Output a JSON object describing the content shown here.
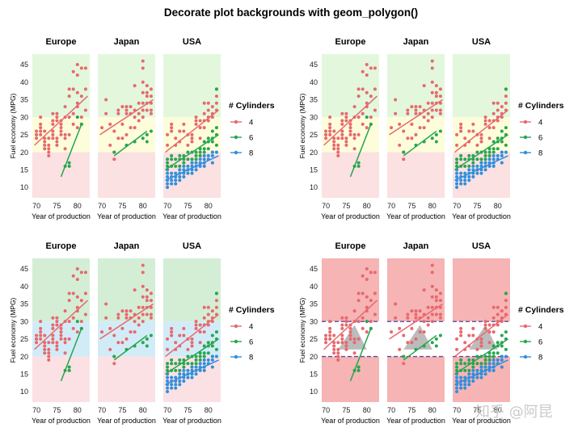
{
  "title": "Decorate plot backgrounds with geom_polygon()",
  "watermark": "知乎 @阿昆",
  "chart_data": [
    {
      "type": "scatter",
      "panel": "top-left",
      "background_style": "bands-green-yellow-pink",
      "facets": [
        "Europe",
        "Japan",
        "USA"
      ],
      "xlabel": "Year of production",
      "ylabel": "Fuel economy (MPG)",
      "xlim": [
        69,
        83
      ],
      "ylim": [
        7,
        48
      ],
      "xticks": [
        70,
        75,
        80
      ],
      "yticks": [
        10,
        15,
        20,
        25,
        30,
        35,
        40,
        45
      ],
      "legend_title": "# Cylinders",
      "legend_entries": [
        "4",
        "6",
        "8"
      ],
      "legend_position": "right",
      "bands": [
        {
          "from": 30,
          "to": 48,
          "color": "#e3f7dc"
        },
        {
          "from": 20,
          "to": 30,
          "color": "#fdfddb"
        },
        {
          "from": 7,
          "to": 20,
          "color": "#fbe1e1"
        }
      ]
    },
    {
      "type": "scatter",
      "panel": "top-right",
      "background_style": "bands-green-yellow-pink",
      "facets": [
        "Europe",
        "Japan",
        "USA"
      ],
      "xlabel": "Year of production",
      "ylabel": "Fuel economy (MPG)",
      "xlim": [
        69,
        83
      ],
      "ylim": [
        7,
        48
      ],
      "xticks": [
        70,
        75,
        80
      ],
      "yticks": [
        10,
        15,
        20,
        25,
        30,
        35,
        40,
        45
      ],
      "legend_title": "# Cylinders",
      "legend_entries": [
        "4",
        "6",
        "8"
      ],
      "legend_position": "right",
      "bands": [
        {
          "from": 30,
          "to": 48,
          "color": "#e3f7dc"
        },
        {
          "from": 20,
          "to": 30,
          "color": "#fdfddb"
        },
        {
          "from": 7,
          "to": 20,
          "color": "#fbe1e1"
        }
      ]
    },
    {
      "type": "scatter",
      "panel": "bottom-left",
      "background_style": "bands-green-blue-pink",
      "facets": [
        "Europe",
        "Japan",
        "USA"
      ],
      "xlabel": "Year of production",
      "ylabel": "Fuel economy (MPG)",
      "xlim": [
        69,
        83
      ],
      "ylim": [
        7,
        48
      ],
      "xticks": [
        70,
        75,
        80
      ],
      "yticks": [
        10,
        15,
        20,
        25,
        30,
        35,
        40,
        45
      ],
      "legend_title": "# Cylinders",
      "legend_entries": [
        "4",
        "6",
        "8"
      ],
      "legend_position": "right",
      "bands": [
        {
          "from": 30,
          "to": 48,
          "color": "#d4eed6"
        },
        {
          "from": 20,
          "to": 30,
          "color": "#d2ecf7"
        },
        {
          "from": 7,
          "to": 20,
          "color": "#fbe1e4"
        }
      ]
    },
    {
      "type": "scatter",
      "panel": "bottom-right",
      "background_style": "red-with-white-band-and-grey-triangle",
      "facets": [
        "Europe",
        "Japan",
        "USA"
      ],
      "xlabel": "Year of production",
      "ylabel": "Fuel economy (MPG)",
      "xlim": [
        69,
        83
      ],
      "ylim": [
        7,
        48
      ],
      "xticks": [
        70,
        75,
        80
      ],
      "yticks": [
        10,
        15,
        20,
        25,
        30,
        35,
        40,
        45
      ],
      "legend_title": "# Cylinders",
      "legend_entries": [
        "4",
        "6",
        "8"
      ],
      "legend_position": "right",
      "bands": [
        {
          "from": 30,
          "to": 48,
          "color": "#f6b4b4"
        },
        {
          "from": 20,
          "to": 30,
          "color": "#ffffff"
        },
        {
          "from": 7,
          "to": 20,
          "color": "#f6b4b4"
        }
      ],
      "dashed_lines": [
        20,
        30
      ],
      "triangle": {
        "x": [
          73,
          77,
          80
        ],
        "y": [
          22,
          29,
          22
        ],
        "color": "#b5b5b5"
      }
    }
  ],
  "series": [
    {
      "name": "4",
      "color": "#e8686d"
    },
    {
      "name": "6",
      "color": "#27a64f"
    },
    {
      "name": "8",
      "color": "#2e8fdd"
    }
  ],
  "points": {
    "Europe": {
      "4": [
        [
          70,
          26
        ],
        [
          70,
          25
        ],
        [
          70,
          24
        ],
        [
          70,
          25
        ],
        [
          71,
          27
        ],
        [
          71,
          28
        ],
        [
          71,
          30
        ],
        [
          71,
          25
        ],
        [
          71,
          26
        ],
        [
          72,
          22
        ],
        [
          72,
          21
        ],
        [
          72,
          23
        ],
        [
          72,
          26
        ],
        [
          72,
          24
        ],
        [
          73,
          24
        ],
        [
          73,
          20
        ],
        [
          73,
          21
        ],
        [
          73,
          19
        ],
        [
          73,
          22
        ],
        [
          74,
          25
        ],
        [
          74,
          26
        ],
        [
          74,
          24
        ],
        [
          74,
          28
        ],
        [
          74,
          29
        ],
        [
          74,
          31
        ],
        [
          75,
          29
        ],
        [
          75,
          30
        ],
        [
          75,
          24
        ],
        [
          75,
          22
        ],
        [
          75,
          23
        ],
        [
          76,
          25
        ],
        [
          76,
          26
        ],
        [
          76,
          28
        ],
        [
          76,
          29
        ],
        [
          76,
          27
        ],
        [
          77,
          21
        ],
        [
          77,
          25
        ],
        [
          77,
          30
        ],
        [
          77,
          33
        ],
        [
          78,
          30
        ],
        [
          78,
          36
        ],
        [
          78,
          38
        ],
        [
          78,
          25
        ],
        [
          79,
          28
        ],
        [
          79,
          31
        ],
        [
          79,
          38
        ],
        [
          79,
          43
        ],
        [
          80,
          34
        ],
        [
          80,
          33
        ],
        [
          80,
          42
        ],
        [
          80,
          45
        ],
        [
          80,
          37
        ],
        [
          81,
          36
        ],
        [
          81,
          44
        ],
        [
          81,
          28
        ],
        [
          82,
          44
        ],
        [
          82,
          38
        ],
        [
          82,
          32
        ],
        [
          80,
          27
        ],
        [
          81,
          30
        ],
        [
          75,
          31
        ],
        [
          77,
          24
        ]
      ],
      "6": [
        [
          77,
          16
        ],
        [
          78,
          17
        ],
        [
          78,
          16
        ],
        [
          80,
          30
        ],
        [
          81,
          28
        ]
      ]
    },
    "Japan": {
      "4": [
        [
          70,
          27
        ],
        [
          71,
          31
        ],
        [
          71,
          35
        ],
        [
          72,
          28
        ],
        [
          72,
          22
        ],
        [
          73,
          26
        ],
        [
          73,
          20
        ],
        [
          73,
          18
        ],
        [
          74,
          31
        ],
        [
          74,
          32
        ],
        [
          74,
          24
        ],
        [
          75,
          33
        ],
        [
          75,
          24
        ],
        [
          75,
          28
        ],
        [
          76,
          31
        ],
        [
          76,
          32
        ],
        [
          76,
          33
        ],
        [
          76,
          25
        ],
        [
          77,
          31
        ],
        [
          77,
          33
        ],
        [
          77,
          27
        ],
        [
          78,
          32
        ],
        [
          78,
          39
        ],
        [
          78,
          27
        ],
        [
          78,
          30
        ],
        [
          79,
          31
        ],
        [
          79,
          34
        ],
        [
          79,
          29
        ],
        [
          80,
          46
        ],
        [
          80,
          44
        ],
        [
          80,
          40
        ],
        [
          80,
          37
        ],
        [
          80,
          34
        ],
        [
          80,
          32
        ],
        [
          80,
          30
        ],
        [
          81,
          39
        ],
        [
          81,
          36
        ],
        [
          81,
          34
        ],
        [
          81,
          32
        ],
        [
          81,
          37
        ],
        [
          82,
          36
        ],
        [
          82,
          38
        ],
        [
          82,
          31
        ],
        [
          82,
          34
        ],
        [
          82,
          32
        ]
      ],
      "6": [
        [
          73,
          20
        ],
        [
          76,
          22
        ],
        [
          78,
          23
        ],
        [
          80,
          24
        ],
        [
          81,
          25
        ],
        [
          82,
          26
        ],
        [
          81,
          23
        ]
      ]
    },
    "USA": {
      "4": [
        [
          70,
          25
        ],
        [
          70,
          22
        ],
        [
          71,
          28
        ],
        [
          71,
          27
        ],
        [
          71,
          26
        ],
        [
          72,
          22
        ],
        [
          72,
          24
        ],
        [
          73,
          23
        ],
        [
          73,
          26
        ],
        [
          74,
          26
        ],
        [
          74,
          28
        ],
        [
          75,
          25
        ],
        [
          75,
          22
        ],
        [
          76,
          24
        ],
        [
          76,
          23
        ],
        [
          76,
          25
        ],
        [
          77,
          30
        ],
        [
          77,
          28
        ],
        [
          77,
          29
        ],
        [
          78,
          27
        ],
        [
          78,
          24
        ],
        [
          78,
          29
        ],
        [
          79,
          27
        ],
        [
          79,
          29
        ],
        [
          79,
          34
        ],
        [
          80,
          32
        ],
        [
          80,
          29
        ],
        [
          80,
          34
        ],
        [
          81,
          33
        ],
        [
          81,
          31
        ],
        [
          81,
          30
        ],
        [
          82,
          34
        ],
        [
          82,
          36
        ],
        [
          82,
          38
        ],
        [
          82,
          32
        ],
        [
          79,
          31
        ],
        [
          80,
          30
        ]
      ],
      "6": [
        [
          70,
          18
        ],
        [
          70,
          17
        ],
        [
          70,
          16
        ],
        [
          71,
          19
        ],
        [
          71,
          18
        ],
        [
          71,
          16
        ],
        [
          72,
          18
        ],
        [
          72,
          16
        ],
        [
          73,
          19
        ],
        [
          73,
          18
        ],
        [
          73,
          16
        ],
        [
          74,
          19
        ],
        [
          74,
          18
        ],
        [
          74,
          17
        ],
        [
          75,
          20
        ],
        [
          75,
          18
        ],
        [
          75,
          15
        ],
        [
          76,
          20
        ],
        [
          76,
          18
        ],
        [
          76,
          17
        ],
        [
          77,
          20
        ],
        [
          77,
          19
        ],
        [
          77,
          18
        ],
        [
          78,
          21
        ],
        [
          78,
          20
        ],
        [
          78,
          19
        ],
        [
          79,
          21
        ],
        [
          79,
          20
        ],
        [
          79,
          23
        ],
        [
          80,
          21
        ],
        [
          80,
          24
        ],
        [
          80,
          23
        ],
        [
          81,
          24
        ],
        [
          81,
          23
        ],
        [
          81,
          26
        ],
        [
          81,
          20
        ],
        [
          82,
          25
        ],
        [
          82,
          27
        ],
        [
          82,
          22
        ],
        [
          82,
          38
        ]
      ],
      "8": [
        [
          70,
          15
        ],
        [
          70,
          14
        ],
        [
          70,
          13
        ],
        [
          70,
          12
        ],
        [
          70,
          11
        ],
        [
          70,
          10
        ],
        [
          71,
          14
        ],
        [
          71,
          13
        ],
        [
          71,
          12
        ],
        [
          71,
          11
        ],
        [
          72,
          14
        ],
        [
          72,
          13
        ],
        [
          72,
          12
        ],
        [
          72,
          11
        ],
        [
          73,
          15
        ],
        [
          73,
          14
        ],
        [
          73,
          13
        ],
        [
          73,
          12
        ],
        [
          74,
          16
        ],
        [
          74,
          15
        ],
        [
          74,
          14
        ],
        [
          74,
          13
        ],
        [
          75,
          16
        ],
        [
          75,
          15
        ],
        [
          75,
          14
        ],
        [
          76,
          17
        ],
        [
          76,
          16
        ],
        [
          76,
          15
        ],
        [
          76,
          14
        ],
        [
          77,
          17
        ],
        [
          77,
          16
        ],
        [
          77,
          15
        ],
        [
          78,
          18
        ],
        [
          78,
          17
        ],
        [
          78,
          16
        ],
        [
          79,
          19
        ],
        [
          79,
          18
        ],
        [
          79,
          17
        ],
        [
          79,
          16
        ],
        [
          80,
          19
        ],
        [
          80,
          18
        ],
        [
          81,
          20
        ],
        [
          81,
          19
        ],
        [
          81,
          17
        ],
        [
          82,
          20
        ]
      ]
    }
  },
  "fit_lines": {
    "Europe": {
      "4": [
        [
          69.5,
          22
        ],
        [
          82.5,
          36
        ]
      ],
      "6": [
        [
          76,
          13
        ],
        [
          81,
          28
        ]
      ]
    },
    "Japan": {
      "4": [
        [
          69.5,
          25
        ],
        [
          82.5,
          35
        ]
      ],
      "6": [
        [
          73,
          19
        ],
        [
          81,
          26
        ]
      ]
    },
    "USA": {
      "4": [
        [
          69.5,
          20
        ],
        [
          82.5,
          32
        ]
      ],
      "6": [
        [
          69.5,
          15
        ],
        [
          82.5,
          25
        ]
      ],
      "8": [
        [
          69.5,
          12
        ],
        [
          82.5,
          19
        ]
      ]
    }
  }
}
